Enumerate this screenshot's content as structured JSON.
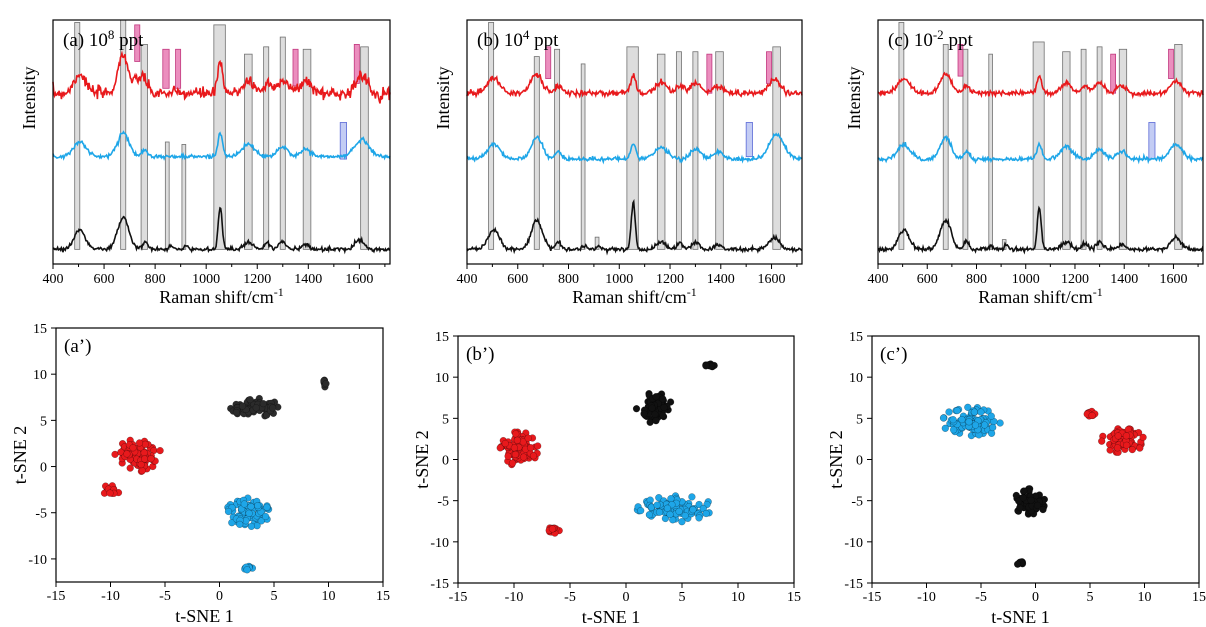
{
  "chart_data": [
    {
      "type": "line",
      "panel_label": "(a)",
      "title_base": "10",
      "title_exp": "8",
      "title_unit": "ppt",
      "xlabel_main": "Raman shift/cm",
      "xlabel_sup": "-1",
      "ylabel": "Intensity",
      "xlim": [
        400,
        1720
      ],
      "xticks": [
        400,
        600,
        800,
        1000,
        1200,
        1400,
        1600
      ],
      "yticks_shown": false,
      "series": [
        {
          "color": "#e8191c",
          "baseline": 0.7,
          "noise": 0.012,
          "peaks": [
            [
              505,
              0.08,
              22
            ],
            [
              675,
              0.16,
              20
            ],
            [
              735,
              0.06,
              14
            ],
            [
              760,
              0.05,
              10
            ],
            [
              1055,
              0.13,
              9
            ],
            [
              1165,
              0.05,
              22
            ],
            [
              1240,
              0.04,
              14
            ],
            [
              1300,
              0.06,
              20
            ],
            [
              1390,
              0.05,
              22
            ],
            [
              1600,
              0.06,
              18
            ],
            [
              1630,
              0.04,
              12
            ]
          ]
        },
        {
          "color": "#1ea6e8",
          "baseline": 0.44,
          "noise": 0.004,
          "peaks": [
            [
              505,
              0.06,
              25
            ],
            [
              675,
              0.1,
              22
            ],
            [
              760,
              0.03,
              12
            ],
            [
              1055,
              0.1,
              9
            ],
            [
              1165,
              0.05,
              25
            ],
            [
              1300,
              0.04,
              20
            ],
            [
              1390,
              0.03,
              20
            ],
            [
              1610,
              0.07,
              28
            ]
          ]
        },
        {
          "color": "#111111",
          "baseline": 0.06,
          "noise": 0.004,
          "peaks": [
            [
              505,
              0.08,
              22
            ],
            [
              675,
              0.13,
              22
            ],
            [
              760,
              0.03,
              10
            ],
            [
              860,
              0.015,
              8
            ],
            [
              920,
              0.015,
              8
            ],
            [
              1055,
              0.17,
              8
            ],
            [
              1165,
              0.03,
              18
            ],
            [
              1240,
              0.025,
              12
            ],
            [
              1300,
              0.03,
              15
            ],
            [
              1390,
              0.02,
              15
            ],
            [
              1600,
              0.04,
              18
            ]
          ]
        }
      ],
      "gray_bands": [
        [
          485,
          505,
          0.06,
          0.99
        ],
        [
          665,
          685,
          0.06,
          1.0
        ],
        [
          745,
          770,
          0.06,
          0.9
        ],
        [
          840,
          855,
          0.06,
          0.5
        ],
        [
          905,
          920,
          0.06,
          0.49
        ],
        [
          1030,
          1075,
          0.06,
          0.98
        ],
        [
          1150,
          1180,
          0.06,
          0.86
        ],
        [
          1225,
          1245,
          0.06,
          0.89
        ],
        [
          1290,
          1310,
          0.06,
          0.93
        ],
        [
          1380,
          1410,
          0.06,
          0.88
        ],
        [
          1605,
          1635,
          0.06,
          0.89
        ]
      ],
      "pink_bands": [
        [
          720,
          740,
          0.83,
          0.98
        ],
        [
          830,
          855,
          0.72,
          0.88
        ],
        [
          880,
          900,
          0.72,
          0.88
        ],
        [
          1340,
          1360,
          0.73,
          0.88
        ],
        [
          1580,
          1600,
          0.74,
          0.9
        ]
      ],
      "blue_bands": [
        [
          1525,
          1550,
          0.43,
          0.58
        ]
      ]
    },
    {
      "type": "line",
      "panel_label": "(b)",
      "title_base": "10",
      "title_exp": "4",
      "title_unit": "ppt",
      "xlabel_main": "Raman shift/cm",
      "xlabel_sup": "-1",
      "ylabel": "Intensity",
      "xlim": [
        400,
        1720
      ],
      "xticks": [
        400,
        600,
        800,
        1000,
        1200,
        1400,
        1600
      ],
      "yticks_shown": false,
      "series": [
        {
          "color": "#e8191c",
          "baseline": 0.7,
          "noise": 0.006,
          "peaks": [
            [
              505,
              0.06,
              25
            ],
            [
              675,
              0.08,
              22
            ],
            [
              760,
              0.03,
              12
            ],
            [
              1055,
              0.07,
              10
            ],
            [
              1165,
              0.05,
              22
            ],
            [
              1240,
              0.03,
              14
            ],
            [
              1300,
              0.04,
              20
            ],
            [
              1390,
              0.03,
              20
            ],
            [
              1610,
              0.06,
              22
            ]
          ]
        },
        {
          "color": "#1ea6e8",
          "baseline": 0.43,
          "noise": 0.004,
          "peaks": [
            [
              505,
              0.06,
              25
            ],
            [
              675,
              0.09,
              22
            ],
            [
              760,
              0.03,
              12
            ],
            [
              1055,
              0.06,
              10
            ],
            [
              1165,
              0.05,
              25
            ],
            [
              1300,
              0.04,
              20
            ],
            [
              1390,
              0.03,
              20
            ],
            [
              1620,
              0.1,
              30
            ]
          ]
        },
        {
          "color": "#111111",
          "baseline": 0.06,
          "noise": 0.004,
          "peaks": [
            [
              505,
              0.08,
              22
            ],
            [
              675,
              0.12,
              22
            ],
            [
              760,
              0.03,
              10
            ],
            [
              860,
              0.015,
              8
            ],
            [
              920,
              0.015,
              8
            ],
            [
              1055,
              0.19,
              8
            ],
            [
              1165,
              0.03,
              18
            ],
            [
              1240,
              0.025,
              12
            ],
            [
              1300,
              0.03,
              15
            ],
            [
              1390,
              0.02,
              15
            ],
            [
              1610,
              0.05,
              20
            ]
          ]
        }
      ],
      "gray_bands": [
        [
          485,
          505,
          0.06,
          0.99
        ],
        [
          665,
          685,
          0.06,
          0.85
        ],
        [
          745,
          765,
          0.06,
          0.88
        ],
        [
          850,
          865,
          0.06,
          0.82
        ],
        [
          905,
          920,
          0.06,
          0.11
        ],
        [
          1030,
          1075,
          0.06,
          0.89
        ],
        [
          1150,
          1180,
          0.06,
          0.86
        ],
        [
          1225,
          1245,
          0.06,
          0.87
        ],
        [
          1290,
          1310,
          0.06,
          0.87
        ],
        [
          1380,
          1410,
          0.06,
          0.87
        ],
        [
          1605,
          1635,
          0.06,
          0.89
        ]
      ],
      "pink_bands": [
        [
          710,
          730,
          0.76,
          0.89
        ],
        [
          1345,
          1365,
          0.7,
          0.86
        ],
        [
          1580,
          1600,
          0.74,
          0.87
        ]
      ],
      "blue_bands": [
        [
          1500,
          1525,
          0.44,
          0.58
        ]
      ]
    },
    {
      "type": "line",
      "panel_label": "(c)",
      "title_base": "10",
      "title_exp": "-2",
      "title_unit": "ppt",
      "xlabel_main": "Raman shift/cm",
      "xlabel_sup": "-1",
      "ylabel": "Intensity",
      "xlim": [
        400,
        1720
      ],
      "xticks": [
        400,
        600,
        800,
        1000,
        1200,
        1400,
        1600
      ],
      "yticks_shown": false,
      "series": [
        {
          "color": "#e8191c",
          "baseline": 0.7,
          "noise": 0.005,
          "peaks": [
            [
              505,
              0.06,
              25
            ],
            [
              675,
              0.08,
              22
            ],
            [
              760,
              0.03,
              12
            ],
            [
              1055,
              0.07,
              10
            ],
            [
              1165,
              0.04,
              22
            ],
            [
              1240,
              0.03,
              14
            ],
            [
              1300,
              0.04,
              20
            ],
            [
              1390,
              0.03,
              20
            ],
            [
              1610,
              0.05,
              22
            ]
          ]
        },
        {
          "color": "#1ea6e8",
          "baseline": 0.43,
          "noise": 0.004,
          "peaks": [
            [
              505,
              0.06,
              25
            ],
            [
              675,
              0.09,
              22
            ],
            [
              760,
              0.03,
              12
            ],
            [
              1055,
              0.06,
              10
            ],
            [
              1165,
              0.05,
              25
            ],
            [
              1300,
              0.04,
              20
            ],
            [
              1390,
              0.03,
              20
            ],
            [
              1610,
              0.06,
              25
            ]
          ]
        },
        {
          "color": "#111111",
          "baseline": 0.06,
          "noise": 0.004,
          "peaks": [
            [
              505,
              0.08,
              22
            ],
            [
              675,
              0.12,
              22
            ],
            [
              760,
              0.03,
              10
            ],
            [
              860,
              0.015,
              8
            ],
            [
              920,
              0.02,
              8
            ],
            [
              1055,
              0.17,
              8
            ],
            [
              1165,
              0.03,
              18
            ],
            [
              1240,
              0.025,
              12
            ],
            [
              1300,
              0.03,
              15
            ],
            [
              1390,
              0.02,
              15
            ],
            [
              1610,
              0.05,
              20
            ]
          ]
        }
      ],
      "gray_bands": [
        [
          485,
          505,
          0.06,
          0.99
        ],
        [
          665,
          685,
          0.06,
          0.9
        ],
        [
          745,
          765,
          0.06,
          0.88
        ],
        [
          850,
          865,
          0.06,
          0.86
        ],
        [
          905,
          920,
          0.06,
          0.1
        ],
        [
          1030,
          1075,
          0.06,
          0.91
        ],
        [
          1150,
          1180,
          0.06,
          0.87
        ],
        [
          1225,
          1245,
          0.06,
          0.88
        ],
        [
          1290,
          1310,
          0.06,
          0.89
        ],
        [
          1380,
          1410,
          0.06,
          0.88
        ],
        [
          1605,
          1635,
          0.06,
          0.9
        ]
      ],
      "pink_bands": [
        [
          725,
          745,
          0.77,
          0.9
        ],
        [
          1345,
          1365,
          0.7,
          0.86
        ],
        [
          1580,
          1600,
          0.76,
          0.88
        ]
      ],
      "blue_bands": [
        [
          1500,
          1525,
          0.43,
          0.58
        ]
      ]
    },
    {
      "type": "scatter",
      "panel_label": "(a’)",
      "xlabel": "t-SNE 1",
      "ylabel": "t-SNE 2",
      "xlim": [
        -15,
        15
      ],
      "ylim": [
        -12.5,
        15
      ],
      "xticks": [
        -15,
        -10,
        -5,
        0,
        5,
        10,
        15
      ],
      "yticks": [
        -10,
        -5,
        0,
        5,
        10,
        15
      ],
      "series": [
        {
          "color": "#e8191c",
          "clusters": [
            [
              -7.5,
              1.2,
              2.2,
              1.8,
              90
            ],
            [
              -10.0,
              -2.6,
              0.9,
              0.6,
              14
            ]
          ]
        },
        {
          "color": "#1ea6e8",
          "clusters": [
            [
              2.6,
              -5.0,
              2.0,
              1.6,
              90
            ],
            [
              2.5,
              -11.0,
              0.6,
              0.35,
              10
            ]
          ]
        },
        {
          "color": "#2b2b2b",
          "clusters": [
            [
              3.3,
              6.4,
              2.3,
              1.0,
              80
            ],
            [
              9.7,
              9.0,
              0.25,
              0.45,
              7
            ]
          ]
        }
      ]
    },
    {
      "type": "scatter",
      "panel_label": "(b’)",
      "xlabel": "t-SNE 1",
      "ylabel": "t-SNE 2",
      "xlim": [
        -15,
        15
      ],
      "ylim": [
        -15,
        15
      ],
      "xticks": [
        -15,
        -10,
        -5,
        0,
        5,
        10,
        15
      ],
      "yticks": [
        -15,
        -10,
        -5,
        0,
        5,
        10,
        15
      ],
      "series": [
        {
          "color": "#e8191c",
          "clusters": [
            [
              -9.5,
              1.2,
              1.8,
              2.2,
              90
            ],
            [
              -6.4,
              -8.6,
              0.8,
              0.4,
              16
            ]
          ]
        },
        {
          "color": "#1ea6e8",
          "clusters": [
            [
              4.5,
              -6.0,
              3.6,
              1.6,
              100
            ]
          ]
        },
        {
          "color": "#111111",
          "clusters": [
            [
              2.5,
              6.3,
              1.6,
              1.9,
              80
            ],
            [
              7.4,
              11.4,
              0.6,
              0.3,
              10
            ]
          ]
        }
      ]
    },
    {
      "type": "scatter",
      "panel_label": "(c’)",
      "xlabel": "t-SNE 1",
      "ylabel": "t-SNE 2",
      "xlim": [
        -15,
        15
      ],
      "ylim": [
        -15,
        15
      ],
      "xticks": [
        -15,
        -10,
        -5,
        0,
        5,
        10,
        15
      ],
      "yticks": [
        -15,
        -10,
        -5,
        0,
        5,
        10,
        15
      ],
      "series": [
        {
          "color": "#e8191c",
          "clusters": [
            [
              8.0,
              2.3,
              2.0,
              1.5,
              90
            ],
            [
              5.0,
              5.5,
              0.6,
              0.4,
              12
            ]
          ]
        },
        {
          "color": "#1ea6e8",
          "clusters": [
            [
              -5.8,
              4.6,
              2.9,
              1.8,
              100
            ]
          ]
        },
        {
          "color": "#111111",
          "clusters": [
            [
              -0.5,
              -5.2,
              1.5,
              1.7,
              80
            ],
            [
              -1.3,
              -12.6,
              0.5,
              0.2,
              8
            ]
          ]
        }
      ]
    }
  ]
}
